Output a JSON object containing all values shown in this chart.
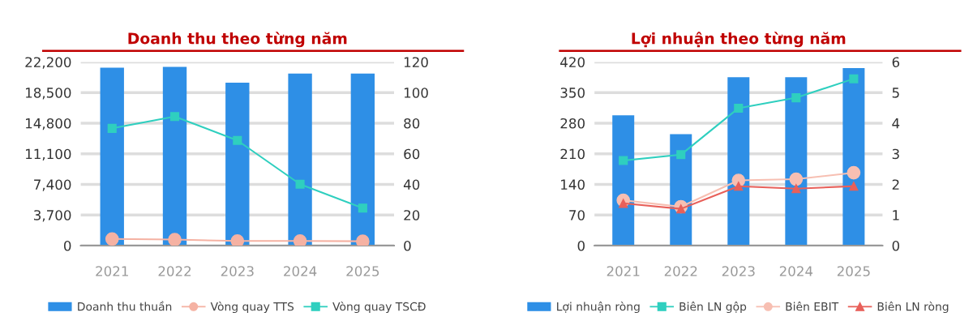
{
  "chart_data": [
    {
      "type": "bar",
      "title": "Doanh thu theo từng năm",
      "categories": [
        "2021",
        "2022",
        "2023",
        "2024",
        "2025"
      ],
      "series": [
        {
          "name": "Doanh thu thuần",
          "color": "#2e8fe6",
          "values": [
            21500,
            21600,
            19700,
            20800,
            20800
          ]
        },
        {
          "name": "Vòng quay TTS",
          "type": "line",
          "axis": "y2",
          "marker": "circle",
          "color": "#f5b2a3",
          "values": [
            4.3,
            3.9,
            3.0,
            3.0,
            2.8
          ]
        },
        {
          "name": "Vòng quay TSCĐ",
          "type": "line",
          "axis": "y2",
          "marker": "square",
          "color": "#2fcfbf",
          "values": [
            76.6,
            84.3,
            68.7,
            40.1,
            24.5
          ]
        }
      ],
      "ylim": [
        0,
        22200
      ],
      "yticks": [
        0,
        {
          "value": 3700,
          "label": "3,700"
        },
        {
          "value": 7400,
          "label": "7,400"
        },
        {
          "value": 11100,
          "label": "11,100"
        },
        {
          "value": 14800,
          "label": "14,800"
        },
        {
          "value": 18500,
          "label": "18,500"
        },
        {
          "value": 22200,
          "label": "22,200"
        }
      ],
      "y2lim": [
        0,
        120
      ],
      "y2ticks": [
        0,
        20,
        40,
        60,
        80,
        100,
        120
      ],
      "grid": "y",
      "legend": "bottom"
    },
    {
      "type": "bar",
      "title": "Lợi nhuận theo từng năm",
      "categories": [
        "2021",
        "2022",
        "2023",
        "2024",
        "2025"
      ],
      "series": [
        {
          "name": "Lợi nhuận ròng",
          "color": "#2e8fe6",
          "values": [
            298,
            255,
            385,
            385,
            406
          ]
        },
        {
          "name": "Biên LN gộp",
          "type": "line",
          "axis": "y2",
          "marker": "square",
          "color": "#2fcfbf",
          "values": [
            2.78,
            2.97,
            4.49,
            4.83,
            5.45
          ]
        },
        {
          "name": "Biên EBIT",
          "type": "line",
          "axis": "y2",
          "marker": "circle",
          "color": "#f7bfb2",
          "values": [
            1.48,
            1.27,
            2.13,
            2.17,
            2.38
          ]
        },
        {
          "name": "Biên LN ròng",
          "type": "line",
          "axis": "y2",
          "marker": "triangle",
          "color": "#e8605a",
          "values": [
            1.38,
            1.2,
            1.94,
            1.86,
            1.94
          ]
        }
      ],
      "ylim": [
        0,
        420
      ],
      "yticks": [
        0,
        70,
        140,
        210,
        280,
        350,
        420
      ],
      "y2lim": [
        0,
        6
      ],
      "y2ticks": [
        0,
        1,
        2,
        3,
        4,
        5,
        6
      ],
      "grid": "y",
      "legend": "bottom"
    }
  ]
}
